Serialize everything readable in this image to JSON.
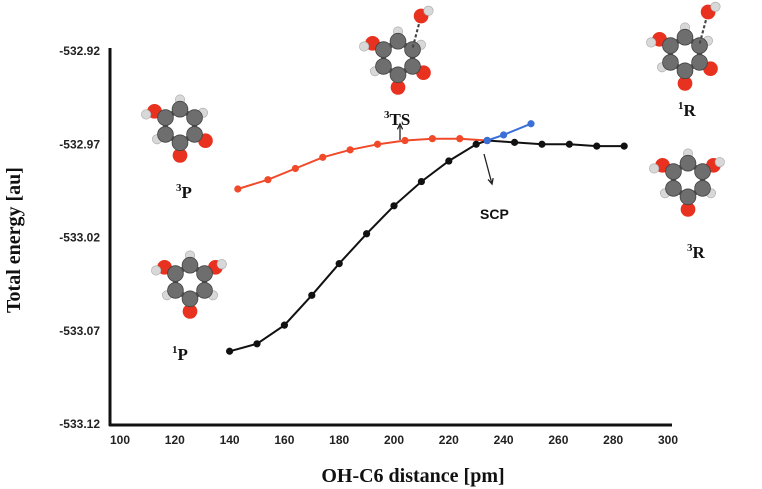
{
  "chart_data": {
    "type": "line",
    "xlabel": "OH-C6 distance [pm]",
    "ylabel": "Total energy [au]",
    "xlim": [
      100,
      300
    ],
    "ylim": [
      -533.12,
      -532.92
    ],
    "x_ticks": [
      "100",
      "120",
      "140",
      "160",
      "180",
      "200",
      "220",
      "240",
      "260",
      "280",
      "300"
    ],
    "y_ticks": [
      "-532.92",
      "-532.97",
      "-533.02",
      "-533.07",
      "-533.12"
    ],
    "series": [
      {
        "color": "#f04a2a",
        "x": [
          143,
          154,
          164,
          174,
          184,
          194,
          204,
          214,
          224,
          234
        ],
        "y": [
          -532.994,
          -532.989,
          -532.983,
          -532.977,
          -532.973,
          -532.97,
          -532.968,
          -532.967,
          -532.967,
          -532.968
        ]
      },
      {
        "color": "#111111",
        "x": [
          140,
          150,
          160,
          170,
          180,
          190,
          200,
          210,
          220,
          230,
          234,
          244,
          254,
          264,
          274,
          284
        ],
        "y": [
          -533.081,
          -533.077,
          -533.067,
          -533.051,
          -533.034,
          -533.018,
          -533.003,
          -532.99,
          -532.979,
          -532.97,
          -532.968,
          -532.969,
          -532.97,
          -532.97,
          -532.971,
          -532.971
        ]
      },
      {
        "color": "#3a6fd8",
        "x": [
          234,
          240,
          250
        ],
        "y": [
          -532.968,
          -532.965,
          -532.959
        ]
      }
    ],
    "annotations": [
      {
        "id": "3P",
        "sup": "3",
        "letter": "P"
      },
      {
        "id": "1P",
        "sup": "1",
        "letter": "P"
      },
      {
        "id": "3TS",
        "sup": "3",
        "letter": "TS"
      },
      {
        "id": "1R",
        "sup": "1",
        "letter": "R"
      },
      {
        "id": "3R",
        "sup": "3",
        "letter": "R"
      },
      {
        "id": "SCP",
        "text": "SCP"
      }
    ],
    "molecule_icons": [
      "phenol-radical-molecule-icon"
    ]
  }
}
